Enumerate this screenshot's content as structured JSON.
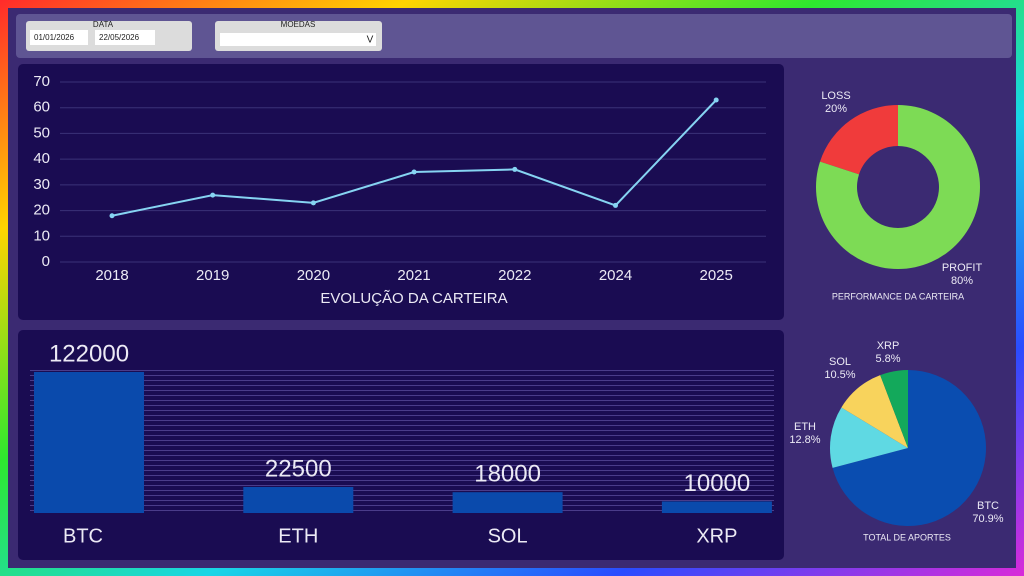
{
  "filters": {
    "date": {
      "label": "DATA",
      "start": "01/01/2026",
      "end": "22/05/2026"
    },
    "coins": {
      "label": "MOEDAS",
      "arrow": "V"
    }
  },
  "chart_data": [
    {
      "type": "line",
      "xlabel": "EVOLUÇÃO DA CARTEIRA",
      "categories": [
        "2018",
        "2019",
        "2020",
        "2021",
        "2022",
        "2024",
        "2025"
      ],
      "values": [
        18,
        26,
        23,
        35,
        36,
        22,
        63
      ],
      "color": "#86d4f2",
      "ylim": [
        0,
        70
      ],
      "yticks": [
        0,
        10,
        20,
        30,
        40,
        50,
        60,
        70
      ],
      "grid": true
    },
    {
      "type": "donut",
      "title": "PERFORMANCE DA CARTEIRA",
      "categories": [
        "LOSS",
        "PROFIT"
      ],
      "values": [
        20,
        80
      ],
      "value_labels": [
        "20%",
        "80%"
      ],
      "colors": [
        "#f03b3b",
        "#7ddb55"
      ]
    },
    {
      "type": "bar",
      "categories": [
        "BTC",
        "ETH",
        "SOL",
        "XRP"
      ],
      "values": [
        122000,
        22500,
        18000,
        10000
      ],
      "color": "#0a4aac"
    },
    {
      "type": "pie",
      "title": "TOTAL DE APORTES",
      "categories": [
        "BTC",
        "ETH",
        "SOL",
        "XRP"
      ],
      "values": [
        70.9,
        12.8,
        10.5,
        5.8
      ],
      "value_labels": [
        "70.9%",
        "12.8%",
        "10.5%",
        "5.8%"
      ],
      "colors": [
        "#0a4db0",
        "#5fd9e3",
        "#f8d35c",
        "#13a95b"
      ]
    }
  ]
}
